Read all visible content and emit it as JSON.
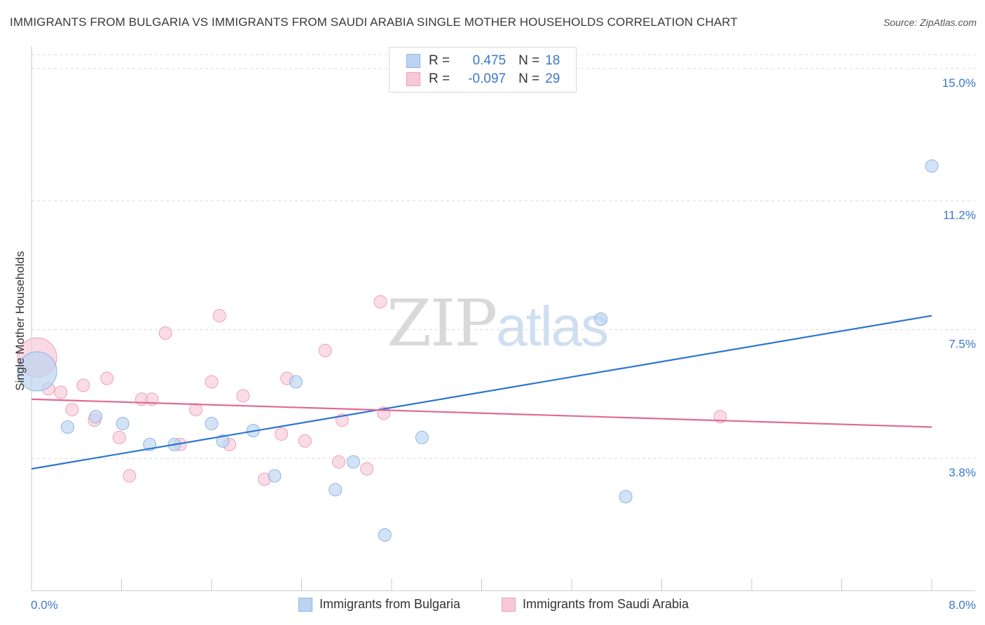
{
  "title": "IMMIGRANTS FROM BULGARIA VS IMMIGRANTS FROM SAUDI ARABIA SINGLE MOTHER HOUSEHOLDS CORRELATION CHART",
  "source": "Source: ZipAtlas.com",
  "watermark": {
    "zip": "ZIP",
    "atlas": "atlas"
  },
  "legend": {
    "rows": [
      {
        "r_label": "R =",
        "r_value": "0.475",
        "n_label": "N =",
        "n_value": "18"
      },
      {
        "r_label": "R =",
        "r_value": "-0.097",
        "n_label": "N =",
        "n_value": "29"
      }
    ]
  },
  "colors": {
    "blue_fill": "#bcd4f2",
    "blue_stroke": "#8fb4e3",
    "blue_line": "#2e75d0",
    "pink_fill": "#f7c9d8",
    "pink_stroke": "#ee9fba",
    "pink_line": "#e06a95",
    "tick_text": "#3b78c9"
  },
  "chart_data": {
    "type": "scatter",
    "title": "IMMIGRANTS FROM BULGARIA VS IMMIGRANTS FROM SAUDI ARABIA SINGLE MOTHER HOUSEHOLDS CORRELATION CHART",
    "xlabel": "",
    "ylabel": "Single Mother Households",
    "xlim": [
      0,
      8.0
    ],
    "ylim": [
      0,
      15.4
    ],
    "x_tick_labels": [
      "0.0%",
      "8.0%"
    ],
    "y_ticks": [
      {
        "value": 3.8,
        "label": "3.8%"
      },
      {
        "value": 7.5,
        "label": "7.5%"
      },
      {
        "value": 11.2,
        "label": "11.2%"
      },
      {
        "value": 15.0,
        "label": "15.0%"
      }
    ],
    "series": [
      {
        "name": "Immigrants from Bulgaria",
        "color": "blue",
        "r": 0.475,
        "n": 18,
        "points": [
          {
            "x": 0.05,
            "y": 6.3,
            "big": true
          },
          {
            "x": 0.32,
            "y": 4.7
          },
          {
            "x": 0.57,
            "y": 5.0
          },
          {
            "x": 0.81,
            "y": 4.8
          },
          {
            "x": 1.05,
            "y": 4.2
          },
          {
            "x": 1.27,
            "y": 4.2
          },
          {
            "x": 1.6,
            "y": 4.8
          },
          {
            "x": 1.7,
            "y": 4.3
          },
          {
            "x": 1.97,
            "y": 4.6
          },
          {
            "x": 2.16,
            "y": 3.3
          },
          {
            "x": 2.35,
            "y": 6.0
          },
          {
            "x": 2.7,
            "y": 2.9
          },
          {
            "x": 2.86,
            "y": 3.7
          },
          {
            "x": 3.14,
            "y": 1.6
          },
          {
            "x": 3.47,
            "y": 4.4
          },
          {
            "x": 5.06,
            "y": 7.8
          },
          {
            "x": 5.28,
            "y": 2.7
          },
          {
            "x": 8.0,
            "y": 12.2
          }
        ],
        "trend": {
          "x0": 0.0,
          "y0": 3.5,
          "x1": 8.0,
          "y1": 7.9
        }
      },
      {
        "name": "Immigrants from Saudi Arabia",
        "color": "pink",
        "r": -0.097,
        "n": 29,
        "points": [
          {
            "x": 0.05,
            "y": 6.7,
            "big": true
          },
          {
            "x": 0.15,
            "y": 5.8
          },
          {
            "x": 0.26,
            "y": 5.7
          },
          {
            "x": 0.36,
            "y": 5.2
          },
          {
            "x": 0.46,
            "y": 5.9
          },
          {
            "x": 0.56,
            "y": 4.9
          },
          {
            "x": 0.67,
            "y": 6.1
          },
          {
            "x": 0.78,
            "y": 4.4
          },
          {
            "x": 0.87,
            "y": 3.3
          },
          {
            "x": 0.98,
            "y": 5.5
          },
          {
            "x": 1.07,
            "y": 5.5
          },
          {
            "x": 1.19,
            "y": 7.4
          },
          {
            "x": 1.32,
            "y": 4.2
          },
          {
            "x": 1.46,
            "y": 5.2
          },
          {
            "x": 1.6,
            "y": 6.0
          },
          {
            "x": 1.67,
            "y": 7.9
          },
          {
            "x": 1.76,
            "y": 4.2
          },
          {
            "x": 1.88,
            "y": 5.6
          },
          {
            "x": 2.07,
            "y": 3.2
          },
          {
            "x": 2.22,
            "y": 4.5
          },
          {
            "x": 2.27,
            "y": 6.1
          },
          {
            "x": 2.43,
            "y": 4.3
          },
          {
            "x": 2.61,
            "y": 6.9
          },
          {
            "x": 2.73,
            "y": 3.7
          },
          {
            "x": 2.76,
            "y": 4.9
          },
          {
            "x": 2.98,
            "y": 3.5
          },
          {
            "x": 3.1,
            "y": 8.3
          },
          {
            "x": 3.13,
            "y": 5.1
          },
          {
            "x": 6.12,
            "y": 5.0
          }
        ],
        "trend": {
          "x0": 0.0,
          "y0": 5.5,
          "x1": 8.0,
          "y1": 4.7
        }
      }
    ]
  },
  "bottom_legend": [
    {
      "label": "Immigrants from Bulgaria"
    },
    {
      "label": "Immigrants from Saudi Arabia"
    }
  ]
}
